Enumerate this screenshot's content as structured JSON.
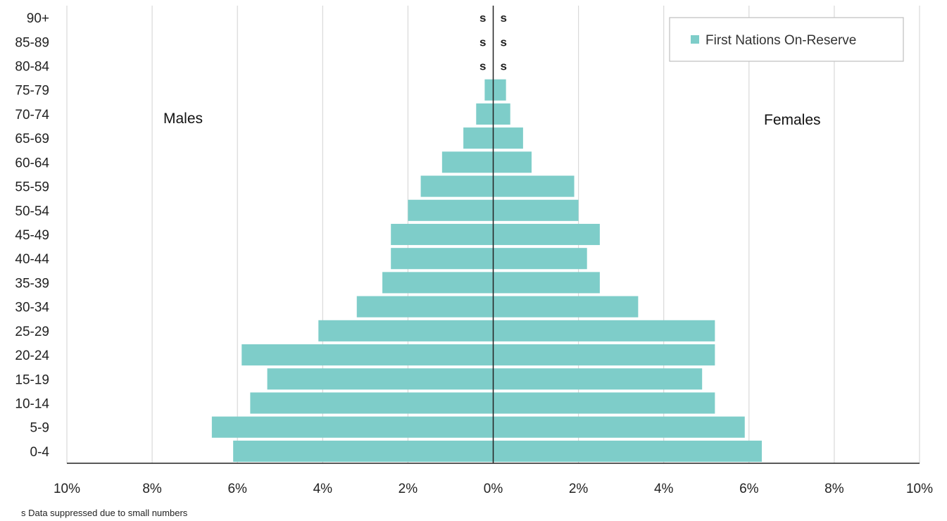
{
  "chart_data": {
    "type": "bar",
    "orientation": "horizontal",
    "variant": "population-pyramid",
    "categories": [
      "0-4",
      "5-9",
      "10-14",
      "15-19",
      "20-24",
      "25-29",
      "30-34",
      "35-39",
      "40-44",
      "45-49",
      "50-54",
      "55-59",
      "60-64",
      "65-69",
      "70-74",
      "75-79",
      "80-84",
      "85-89",
      "90+"
    ],
    "series": [
      {
        "name": "First Nations On-Reserve",
        "group": "Males",
        "values": [
          6.1,
          6.6,
          5.7,
          5.3,
          5.9,
          4.1,
          3.2,
          2.6,
          2.4,
          2.4,
          2.0,
          1.7,
          1.2,
          0.7,
          0.4,
          0.2,
          null,
          null,
          null
        ]
      },
      {
        "name": "First Nations On-Reserve",
        "group": "Females",
        "values": [
          6.3,
          5.9,
          5.2,
          4.9,
          5.2,
          5.2,
          3.4,
          2.5,
          2.2,
          2.5,
          2.0,
          1.9,
          0.9,
          0.7,
          0.4,
          0.3,
          null,
          null,
          null
        ]
      }
    ],
    "suppressed_marker": "s",
    "xlim": [
      -10,
      10
    ],
    "x_ticks": [
      -10,
      -8,
      -6,
      -4,
      -2,
      0,
      2,
      4,
      6,
      8,
      10
    ],
    "x_tick_labels": [
      "10%",
      "8%",
      "6%",
      "4%",
      "2%",
      "0%",
      "2%",
      "4%",
      "6%",
      "8%",
      "10%"
    ],
    "side_labels": {
      "left": "Males",
      "right": "Females"
    },
    "legend": {
      "label": "First Nations On-Reserve",
      "placement": "top-right"
    },
    "grid": true,
    "bar_color": "#7ecdc9",
    "footnote": "s  Data suppressed due to small numbers"
  }
}
